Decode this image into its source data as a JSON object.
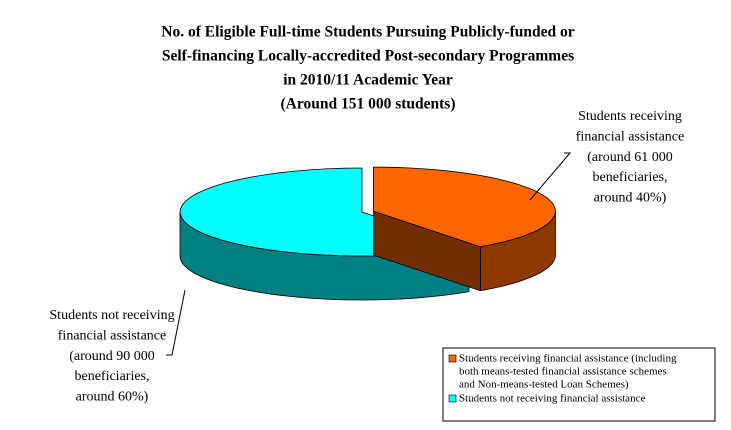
{
  "chart_data": {
    "type": "pie",
    "title": [
      "No. of  Eligible Full-time Students Pursuing Publicly-funded or",
      "Self-financing Locally-accredited Post-secondary Programmes",
      "in 2010/11 Academic Year",
      "(Around 151 000 students)"
    ],
    "categories": [
      [
        "Students receiving financial assistance (including",
        "both means-tested financial assistance schemes",
        "and Non-means-tested Loan Schemes)"
      ],
      [
        "Students not receiving financial assistance"
      ]
    ],
    "values": [
      40,
      60
    ],
    "value_labels": [
      [
        "Students receiving",
        "financial assistance",
        "(around 61 000",
        "beneficiaries,",
        "around 40%)"
      ],
      [
        "Students not receiving",
        "financial assistance",
        "(around 90 000",
        "beneficiaries,",
        "around 60%)"
      ]
    ],
    "colors": [
      "#ff6600",
      "#00ffff"
    ]
  }
}
